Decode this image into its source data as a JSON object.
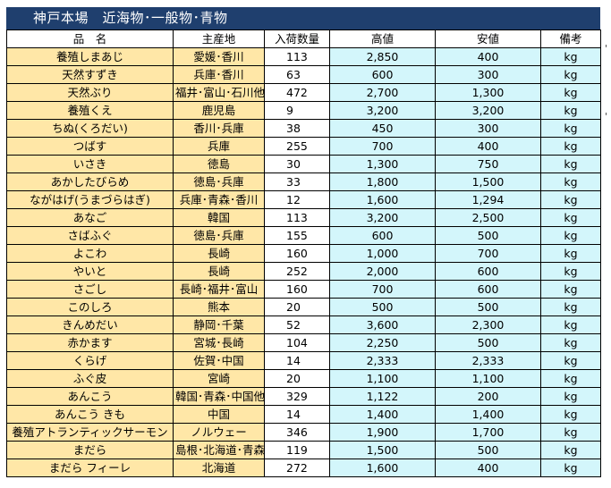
{
  "title": "神戸本場　近海物･一般物･青物",
  "columns": [
    "品　名",
    "主産地",
    "入荷数量",
    "高値",
    "安値",
    "備考"
  ],
  "rows": [
    {
      "name": "養殖しまあじ",
      "origin": "愛媛･香川",
      "qty": "113",
      "high": "2,850",
      "low": "400",
      "note": "kg"
    },
    {
      "name": "天然すずき",
      "origin": "兵庫･香川",
      "qty": "63",
      "high": "600",
      "low": "300",
      "note": "kg"
    },
    {
      "name": "天然ぶり",
      "origin": "福井･富山･石川他",
      "qty": "472",
      "high": "2,700",
      "low": "1,300",
      "note": "kg"
    },
    {
      "name": "養殖くえ",
      "origin": "鹿児島",
      "qty": "9",
      "high": "3,200",
      "low": "3,200",
      "note": "kg"
    },
    {
      "name": "ちぬ(くろだい)",
      "origin": "香川･兵庫",
      "qty": "38",
      "high": "450",
      "low": "300",
      "note": "kg"
    },
    {
      "name": "つばす",
      "origin": "兵庫",
      "qty": "255",
      "high": "700",
      "low": "400",
      "note": "kg"
    },
    {
      "name": "いさき",
      "origin": "徳島",
      "qty": "30",
      "high": "1,300",
      "low": "750",
      "note": "kg"
    },
    {
      "name": "あかしたびらめ",
      "origin": "徳島･兵庫",
      "qty": "33",
      "high": "1,800",
      "low": "1,500",
      "note": "kg"
    },
    {
      "name": "ながはげ(うまづらはぎ)",
      "origin": "兵庫･青森･香川",
      "qty": "12",
      "high": "1,600",
      "low": "1,294",
      "note": "kg"
    },
    {
      "name": "あなご",
      "origin": "韓国",
      "qty": "113",
      "high": "3,200",
      "low": "2,500",
      "note": "kg"
    },
    {
      "name": "さばふぐ",
      "origin": "徳島･兵庫",
      "qty": "155",
      "high": "600",
      "low": "500",
      "note": "kg"
    },
    {
      "name": "よこわ",
      "origin": "長崎",
      "qty": "160",
      "high": "1,000",
      "low": "700",
      "note": "kg"
    },
    {
      "name": "やいと",
      "origin": "長崎",
      "qty": "252",
      "high": "2,000",
      "low": "600",
      "note": "kg"
    },
    {
      "name": "さごし",
      "origin": "長崎･福井･富山",
      "qty": "160",
      "high": "700",
      "low": "600",
      "note": "kg"
    },
    {
      "name": "このしろ",
      "origin": "熊本",
      "qty": "20",
      "high": "500",
      "low": "500",
      "note": "kg"
    },
    {
      "name": "きんめだい",
      "origin": "静岡･千葉",
      "qty": "52",
      "high": "3,600",
      "low": "2,300",
      "note": "kg"
    },
    {
      "name": "赤かます",
      "origin": "宮城･長崎",
      "qty": "104",
      "high": "2,250",
      "low": "500",
      "note": "kg"
    },
    {
      "name": "くらげ",
      "origin": "佐賀･中国",
      "qty": "14",
      "high": "2,333",
      "low": "2,333",
      "note": "kg"
    },
    {
      "name": "ふぐ皮",
      "origin": "宮崎",
      "qty": "20",
      "high": "1,100",
      "low": "1,100",
      "note": "kg"
    },
    {
      "name": "あんこう",
      "origin": "韓国･青森･中国他",
      "qty": "329",
      "high": "1,122",
      "low": "200",
      "note": "kg"
    },
    {
      "name": "あんこう きも",
      "origin": "中国",
      "qty": "14",
      "high": "1,400",
      "low": "1,400",
      "note": "kg"
    },
    {
      "name": "養殖アトランティックサーモン",
      "origin": "ノルウェー",
      "qty": "346",
      "high": "1,900",
      "low": "1,700",
      "note": "kg"
    },
    {
      "name": "まだら",
      "origin": "島根･北海道･青森",
      "qty": "119",
      "high": "1,500",
      "low": "500",
      "note": "kg"
    },
    {
      "name": "まだら フィーレ",
      "origin": "北海道",
      "qty": "272",
      "high": "1,600",
      "low": "400",
      "note": "kg"
    }
  ],
  "colors": {
    "header_bg": "#1f3f6e",
    "name_bg": "#ffe7a7",
    "price_bg": "#d3f6fb"
  }
}
